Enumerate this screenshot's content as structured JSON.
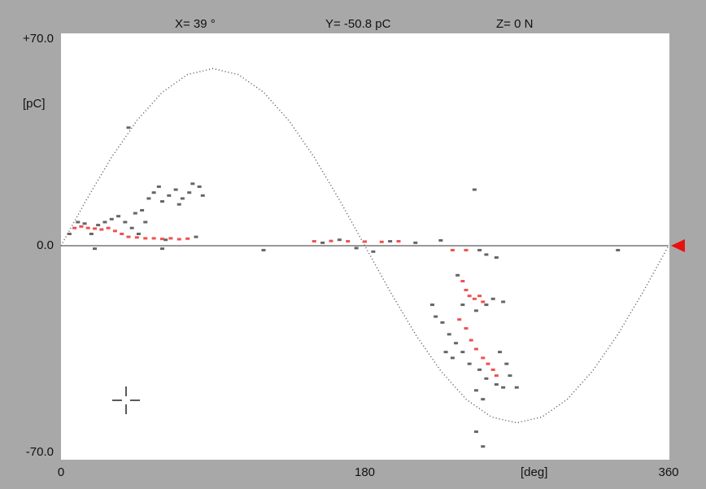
{
  "chart_data": {
    "type": "scatter",
    "readout": [
      "X= 39 °",
      "Y= -50.8 pC",
      "Z= 0 N"
    ],
    "ylabel": "[pC]",
    "xlabel": "[deg]",
    "xlim": [
      0,
      360
    ],
    "ylim": [
      -70,
      70
    ],
    "xticks": [
      0,
      180,
      360
    ],
    "yticks": [
      {
        "value": 70,
        "label": "+70.0"
      },
      {
        "value": 0,
        "label": "0.0"
      },
      {
        "value": -70,
        "label": "-70.0"
      }
    ],
    "series": [
      {
        "color": "#555555",
        "line": true,
        "x": [
          0,
          15,
          30,
          45,
          60,
          75,
          90,
          105,
          120,
          135,
          150,
          165,
          180,
          195,
          210,
          225,
          240,
          255,
          270,
          285,
          300,
          315,
          330,
          345,
          360
        ],
        "values": [
          0,
          15.5,
          30,
          42.4,
          52,
          58,
          60,
          58,
          52,
          42.4,
          30,
          15.5,
          0,
          -15.5,
          -30,
          -42.4,
          -52,
          -58,
          -60,
          -58,
          -52,
          -42.4,
          -30,
          -15.5,
          0
        ]
      },
      {
        "color": "#666666",
        "line": false,
        "x": [
          5,
          10,
          14,
          18,
          22,
          26,
          30,
          34,
          38,
          42,
          46,
          52,
          55,
          58,
          60,
          64,
          68,
          70,
          72,
          76,
          78,
          82,
          84,
          48,
          50,
          44,
          62,
          80,
          40,
          155,
          165,
          175,
          185,
          195,
          210,
          225,
          245,
          248,
          252,
          258,
          235,
          238,
          246,
          252,
          256,
          262,
          220,
          222,
          226,
          230,
          234,
          238,
          242,
          248,
          252,
          258,
          262,
          266,
          264,
          260,
          228,
          232,
          246,
          250,
          270,
          246,
          250,
          330,
          120,
          20,
          60
        ],
        "values": [
          4,
          8,
          7.5,
          4,
          7,
          8,
          9,
          10,
          8,
          6,
          4,
          16,
          18,
          20,
          15,
          17,
          19,
          14,
          16,
          18,
          21,
          20,
          17,
          12,
          8,
          11,
          2,
          3,
          40,
          1,
          2,
          -0.8,
          -2,
          1.5,
          1,
          1.8,
          19,
          -1.5,
          -3,
          -4,
          -10,
          -20,
          -22,
          -20,
          -18,
          -19,
          -20,
          -24,
          -26,
          -30,
          -33,
          -36,
          -40,
          -42,
          -45,
          -47,
          -48,
          -44,
          -40,
          -36,
          -36,
          -38,
          -49,
          -52,
          -48,
          -63,
          -68,
          -1.5,
          -1.5,
          -1,
          -1
        ]
      },
      {
        "color": "#f05050",
        "line": false,
        "x": [
          8,
          12,
          16,
          20,
          24,
          28,
          32,
          36,
          40,
          45,
          50,
          55,
          60,
          65,
          70,
          75,
          150,
          160,
          170,
          180,
          190,
          200,
          232,
          240,
          238,
          240,
          242,
          245,
          248,
          250,
          236,
          240,
          243,
          246,
          250,
          253,
          256,
          258
        ],
        "values": [
          6,
          6.5,
          6,
          5.8,
          5.5,
          6,
          5,
          4,
          3,
          2.8,
          2.5,
          2.5,
          2.3,
          2.5,
          2.2,
          2.4,
          1.5,
          1.6,
          1.5,
          1.4,
          1.3,
          1.5,
          -1.5,
          -1.5,
          -12,
          -15,
          -17,
          -18,
          -17,
          -19,
          -25,
          -28,
          -32,
          -35,
          -38,
          -40,
          -42,
          -44
        ]
      }
    ]
  }
}
